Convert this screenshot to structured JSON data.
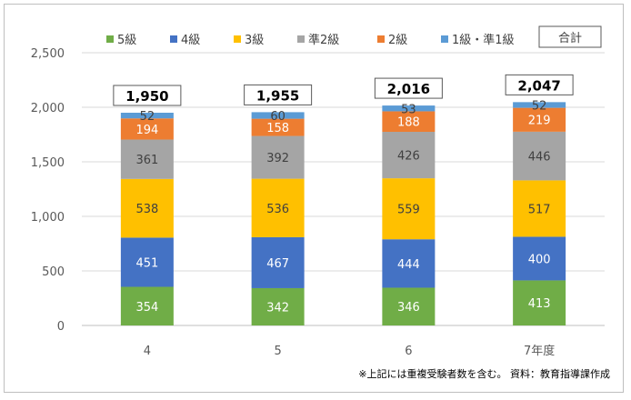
{
  "chart_data": {
    "type": "bar",
    "stacked": true,
    "categories": [
      "4",
      "5",
      "6",
      "7年度"
    ],
    "series": [
      {
        "name": "5級",
        "color": "#70ad47",
        "label_color": "#ffffff",
        "values": [
          354,
          342,
          346,
          413
        ]
      },
      {
        "name": "4級",
        "color": "#4472c4",
        "label_color": "#ffffff",
        "values": [
          451,
          467,
          444,
          400
        ]
      },
      {
        "name": "3級",
        "color": "#ffc000",
        "label_color": "#404040",
        "values": [
          538,
          536,
          559,
          517
        ]
      },
      {
        "name": "準2級",
        "color": "#a5a5a5",
        "label_color": "#404040",
        "values": [
          361,
          392,
          426,
          446
        ]
      },
      {
        "name": "2級",
        "color": "#ed7d31",
        "label_color": "#ffffff",
        "values": [
          194,
          158,
          188,
          219
        ]
      },
      {
        "name": "1級・準1級",
        "color": "#5b9bd5",
        "label_color": "#404040",
        "values": [
          52,
          60,
          53,
          52
        ]
      }
    ],
    "totals": {
      "name": "合計",
      "values": [
        "1,950",
        "1,955",
        "2,016",
        "2,047"
      ]
    },
    "y_ticks": [
      "0",
      "500",
      "1,000",
      "1,500",
      "2,000",
      "2,500"
    ],
    "ylim": [
      0,
      2500
    ],
    "grid": true,
    "legend_position": "top"
  },
  "note": "※上記には重複受験者数を含む。 資料：教育指導課作成"
}
